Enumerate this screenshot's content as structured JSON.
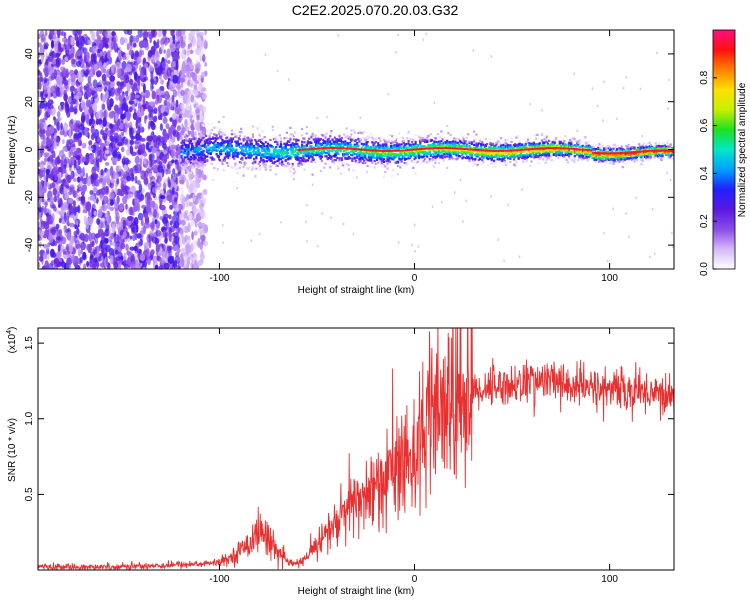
{
  "title": "C2E2.2025.070.20.03.G32",
  "colors": {
    "snr_line": "#e83030",
    "spectrogram_noise": "#7b3fe4",
    "spectrogram_signal": "#e02020"
  },
  "chart_data": [
    {
      "type": "heatmap",
      "xlabel": "Height of straight line (km)",
      "ylabel": "Frequency (Hz)",
      "xlim": [
        -193,
        133
      ],
      "ylim": [
        -50,
        50
      ],
      "x_ticks": [
        -100,
        0,
        100
      ],
      "x_tick_labels": [
        "-100",
        "0",
        "100"
      ],
      "y_ticks": [
        -40,
        -20,
        0,
        20,
        40
      ],
      "y_tick_labels": [
        "-40",
        "-20",
        "0",
        "20",
        "40"
      ],
      "colorbar": {
        "label": "Normalized spectral amplitude",
        "range": [
          0,
          1
        ],
        "ticks": [
          0.0,
          0.2,
          0.4,
          0.6,
          0.8
        ],
        "tick_labels": [
          "0.0",
          "0.2",
          "0.4",
          "0.6",
          "0.8"
        ],
        "colormap": [
          "#ffffff",
          "#d6b8f8",
          "#8a4be8",
          "#5a18e0",
          "#2020ff",
          "#00a0ff",
          "#00e8c8",
          "#20e020",
          "#c8f000",
          "#ffe000",
          "#ff8000",
          "#ff1010",
          "#ff1080"
        ]
      },
      "regions": [
        {
          "x_range": [
            -193,
            -107
          ],
          "y_range": [
            -50,
            50
          ],
          "description_amplitude": 0.25
        },
        {
          "x_range": [
            -120,
            133
          ],
          "center_frequency": 0,
          "amplitude_range": [
            0.4,
            0.95
          ]
        }
      ]
    },
    {
      "type": "line",
      "xlabel": "Height of straight line (km)",
      "ylabel": "SNR (10 * v/v)",
      "y_multiplier_label": "(x10",
      "y_multiplier_exp": "4",
      "y_multiplier_close": ")",
      "xlim": [
        -193,
        133
      ],
      "ylim": [
        0,
        1.6
      ],
      "x_ticks": [
        -100,
        0,
        100
      ],
      "x_tick_labels": [
        "-100",
        "0",
        "100"
      ],
      "y_ticks": [
        0.5,
        1.0,
        1.5
      ],
      "y_tick_labels": [
        "0.5",
        "1.0",
        "1.5"
      ],
      "series": [
        {
          "x": [
            -193,
            -160,
            -130,
            -110,
            -100,
            -95,
            -90,
            -85,
            -80,
            -75,
            -70,
            -65,
            -60,
            -55,
            -50,
            -45,
            -40,
            -35,
            -30,
            -25,
            -20,
            -15,
            -10,
            -5,
            0,
            5,
            10,
            15,
            20,
            30,
            40,
            50,
            60,
            70,
            80,
            90,
            100,
            110,
            120,
            133
          ],
          "y": [
            0.02,
            0.02,
            0.03,
            0.04,
            0.05,
            0.08,
            0.12,
            0.18,
            0.25,
            0.22,
            0.12,
            0.05,
            0.04,
            0.08,
            0.18,
            0.25,
            0.3,
            0.38,
            0.45,
            0.5,
            0.55,
            0.62,
            0.68,
            0.72,
            0.8,
            0.9,
            0.98,
            1.05,
            1.1,
            1.18,
            1.22,
            1.22,
            1.25,
            1.25,
            1.22,
            1.2,
            1.2,
            1.18,
            1.18,
            1.15
          ]
        }
      ]
    }
  ]
}
